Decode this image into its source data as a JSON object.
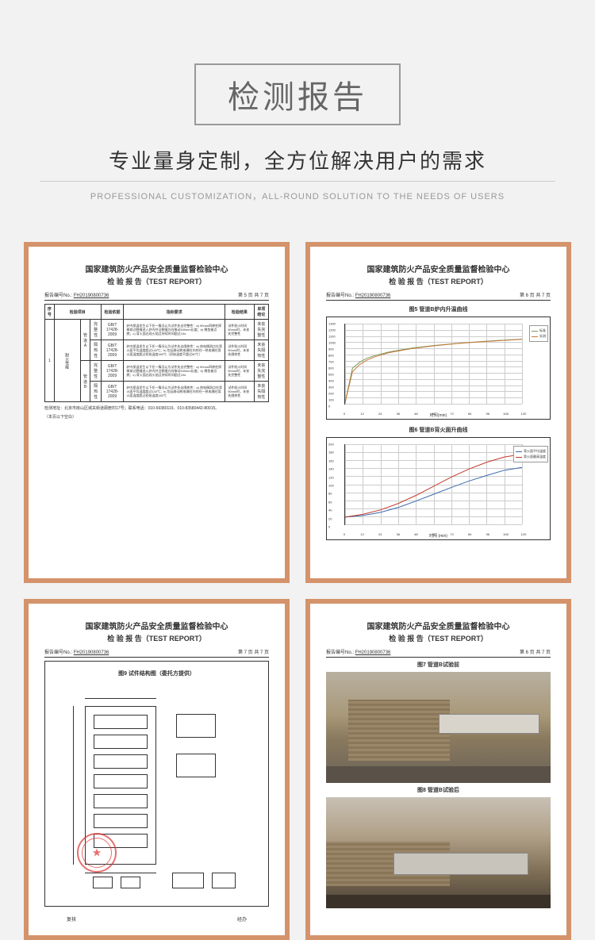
{
  "header": {
    "title": "检测报告",
    "subtitle": "专业量身定制，全方位解决用户的需求",
    "en_subtitle": "PROFESSIONAL CUSTOMIZATION，ALL-ROUND SOLUTION TO THE NEEDS OF USERS"
  },
  "colors": {
    "page_bg": "#f2f2f2",
    "border": "#d4936b",
    "text_main": "#666666",
    "text_dark": "#333333",
    "text_light": "#999999",
    "stamp": "#d33333"
  },
  "report_common": {
    "org": "国家建筑防火产品安全质量监督检验中心",
    "title": "检 验 报 告（TEST REPORT）",
    "report_no_label": "报告编号No.",
    "report_no": "FH20190800736",
    "page_tr": "第 5 页 共 7 页",
    "page_tr2": "第 6 页 共 7 页",
    "page_tr3": "第 7 页 共 7 页"
  },
  "cert1_table": {
    "headers": [
      "序号",
      "检验项目",
      "",
      "检验依据",
      "指标要求",
      "检验结果",
      "单项结论"
    ],
    "big_row_label": "1",
    "group_label": "耐火性能",
    "rows": [
      {
        "sub1": "管道A",
        "sub2": "完整性",
        "std": "GB/T 17428-2009",
        "req": "炉内保温发生以下任一情况认为试件失去完整性：a) 90mm四棱柱探棒穿过裂缝进入炉内并沿裂缝方向移动150mm长度；b) 棉垫被点燃；c) 背火面出现火焰且持续时间超过10s",
        "result": "试件耐火时间90min时，未丧失完整性",
        "conc": "未丧失完整性"
      },
      {
        "sub1": "",
        "sub2": "隔热性",
        "std": "GB/T 17428-2009",
        "req": "炉内保温发生以下任一情况认为试件失去隔热性：a) 热电偶测点在背火面平均温度超过140℃；b) 包括移动热电偶在内的任一热电偶在背火面温度超过初始温度180℃（初始温度不超过50℃）",
        "result": "试件耐火时间90min时，未丧失隔热性",
        "conc": "未丧失隔热性"
      },
      {
        "sub1": "管道B",
        "sub2": "完整性",
        "std": "GB/T 17428-2009",
        "req": "炉内保温发生以下任一情况认为试件失去完整性：a) 90mm四棱柱探棒穿过裂缝进入炉内并沿裂缝方向移动150mm长度；b) 棉垫被点燃；c) 背火面出现火焰且持续时间超过10s",
        "result": "试件耐火时间90min时，未丧失完整性",
        "conc": "未丧失完整性"
      },
      {
        "sub1": "",
        "sub2": "隔热性",
        "std": "GB/T 17428-2009",
        "req": "炉内保温发生以下任一情况认为试件失去隔热性：a) 热电偶测点在背火面平均温度超过140℃；b) 包括移动热电偶在内的任一热电偶在背火面温度超过初始温度180℃",
        "result": "试件耐火时间90min时，未丧失隔热性",
        "conc": "未丧失隔热性"
      }
    ],
    "footer_addr": "检测地址：北京市房山区城关街道顾册村17号；联系电话：010-69380119、010-83580442-80015。",
    "footer_blank": "（本页以下空白）"
  },
  "cert2_chart1": {
    "title": "图5 管道B炉内升温曲线",
    "type": "line",
    "ylim": [
      0,
      1300
    ],
    "ytick_step": 100,
    "xlim": [
      0,
      120
    ],
    "xtick_step": 12,
    "xlabel": "时间(min)",
    "series": [
      {
        "name": "标准",
        "color": "#7a9a5a",
        "points": [
          [
            0,
            20
          ],
          [
            5,
            576
          ],
          [
            10,
            678
          ],
          [
            15,
            739
          ],
          [
            20,
            781
          ],
          [
            30,
            842
          ],
          [
            45,
            902
          ],
          [
            60,
            945
          ],
          [
            75,
            979
          ],
          [
            90,
            1006
          ],
          [
            105,
            1029
          ],
          [
            120,
            1049
          ]
        ]
      },
      {
        "name": "实测",
        "color": "#c77a3a",
        "points": [
          [
            0,
            20
          ],
          [
            5,
            520
          ],
          [
            10,
            640
          ],
          [
            15,
            710
          ],
          [
            20,
            760
          ],
          [
            30,
            830
          ],
          [
            45,
            895
          ],
          [
            60,
            940
          ],
          [
            75,
            975
          ],
          [
            90,
            1002
          ],
          [
            105,
            1025
          ],
          [
            120,
            1045
          ]
        ]
      }
    ]
  },
  "cert2_chart2": {
    "title": "图6 管道B背火面升曲线",
    "type": "line",
    "ylim": [
      0,
      200
    ],
    "ytick_step": 20,
    "xlim": [
      0,
      120
    ],
    "xtick_step": 12,
    "xlabel": "时间 (min)",
    "series": [
      {
        "name": "背火面平均温度",
        "color": "#3a6ab0",
        "points": [
          [
            0,
            18
          ],
          [
            12,
            22
          ],
          [
            24,
            30
          ],
          [
            36,
            42
          ],
          [
            48,
            58
          ],
          [
            60,
            75
          ],
          [
            72,
            92
          ],
          [
            84,
            108
          ],
          [
            96,
            122
          ],
          [
            108,
            135
          ],
          [
            120,
            142
          ]
        ]
      },
      {
        "name": "背火面最高温度",
        "color": "#c0392b",
        "points": [
          [
            0,
            18
          ],
          [
            12,
            25
          ],
          [
            24,
            36
          ],
          [
            36,
            52
          ],
          [
            48,
            72
          ],
          [
            60,
            95
          ],
          [
            72,
            118
          ],
          [
            84,
            138
          ],
          [
            96,
            155
          ],
          [
            108,
            168
          ],
          [
            120,
            175
          ]
        ]
      }
    ]
  },
  "cert3": {
    "diag_title": "图9 试件结构图（委托方提供）",
    "sig_left": "复核",
    "sig_right": "经办"
  },
  "cert4": {
    "photo1_title": "图7 管道B试验前",
    "photo2_title": "图8 管道B试验后"
  }
}
